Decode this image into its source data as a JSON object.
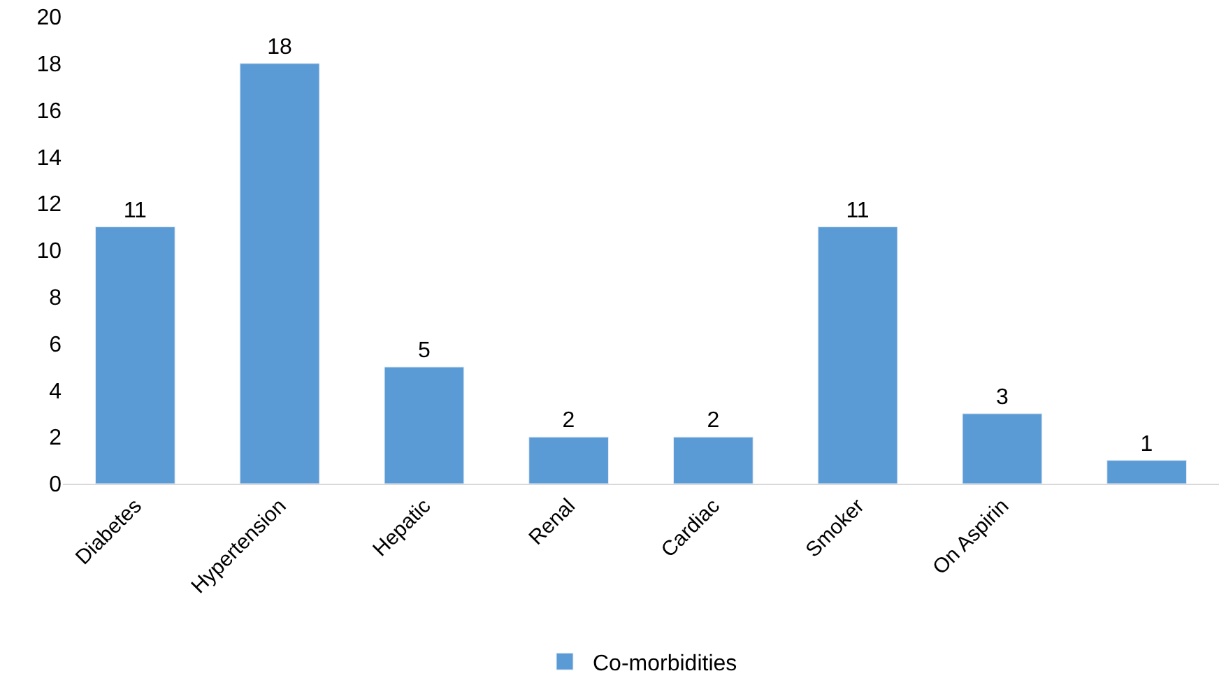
{
  "chart_data": {
    "type": "bar",
    "categories": [
      "Diabetes",
      "Hypertension",
      "Hepatic",
      "Renal",
      "Cardiac",
      "Smoker",
      "On Aspirin",
      null
    ],
    "series": [
      {
        "name": "Co-morbidities",
        "color": "#5b9bd5",
        "values": [
          11,
          18,
          5,
          2,
          2,
          11,
          3,
          1
        ]
      }
    ],
    "ylim": [
      0,
      20
    ],
    "yticks": [
      0,
      2,
      4,
      6,
      8,
      10,
      12,
      14,
      16,
      18,
      20
    ],
    "data_labels": true,
    "legend": "bottom"
  }
}
